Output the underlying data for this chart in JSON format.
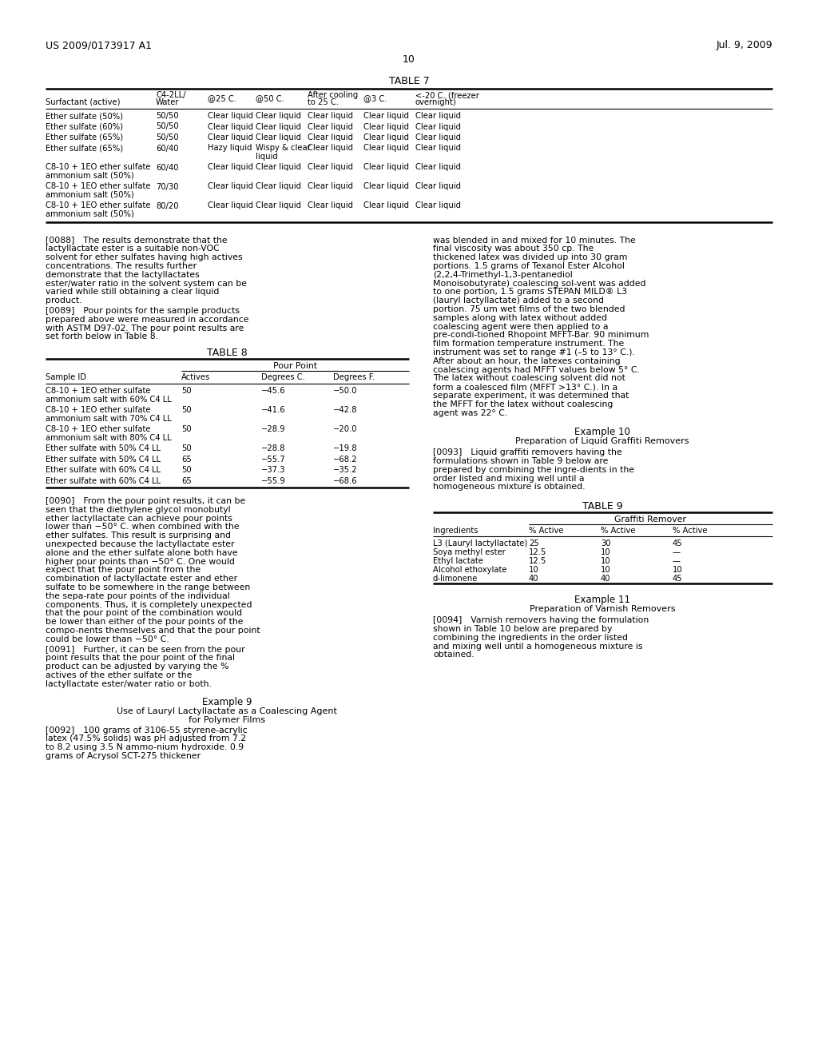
{
  "patent_number": "US 2009/0173917 A1",
  "date": "Jul. 9, 2009",
  "page_number": "10",
  "background_color": "#ffffff",
  "table7_title": "TABLE 7",
  "table7_rows": [
    [
      "Ether sulfate (50%)",
      "50/50",
      "Clear liquid",
      "Clear liquid",
      "Clear liquid",
      "Clear liquid",
      "Clear liquid"
    ],
    [
      "Ether sulfate (60%)",
      "50/50",
      "Clear liquid",
      "Clear liquid",
      "Clear liquid",
      "Clear liquid",
      "Clear liquid"
    ],
    [
      "Ether sulfate (65%)",
      "50/50",
      "Clear liquid",
      "Clear liquid",
      "Clear liquid",
      "Clear liquid",
      "Clear liquid"
    ],
    [
      "Ether sulfate (65%)",
      "60/40",
      "Hazy liquid",
      "Wispy & clear\nliquid",
      "Clear liquid",
      "Clear liquid",
      "Clear liquid"
    ],
    [
      "C8-10 + 1EO ether sulfate\nammonium salt (50%)",
      "60/40",
      "Clear liquid",
      "Clear liquid",
      "Clear liquid",
      "Clear liquid",
      "Clear liquid"
    ],
    [
      "C8-10 + 1EO ether sulfate\nammonium salt (50%)",
      "70/30",
      "Clear liquid",
      "Clear liquid",
      "Clear liquid",
      "Clear liquid",
      "Clear liquid"
    ],
    [
      "C8-10 + 1EO ether sulfate\nammonium salt (50%)",
      "80/20",
      "Clear liquid",
      "Clear liquid",
      "Clear liquid",
      "Clear liquid",
      "Clear liquid"
    ]
  ],
  "table8_title": "TABLE 8",
  "table8_subheader": "Pour Point",
  "table8_rows": [
    [
      "C8-10 + 1EO ether sulfate\nammonium salt with 60% C4 LL",
      "50",
      "−45.6",
      "−50.0"
    ],
    [
      "C8-10 + 1EO ether sulfate\nammonium salt with 70% C4 LL",
      "50",
      "−41.6",
      "−42.8"
    ],
    [
      "C8-10 + 1EO ether sulfate\nammonium salt with 80% C4 LL",
      "50",
      "−28.9",
      "−20.0"
    ],
    [
      "Ether sulfate with 50% C4 LL",
      "50",
      "−28.8",
      "−19.8"
    ],
    [
      "Ether sulfate with 50% C4 LL",
      "65",
      "−55.7",
      "−68.2"
    ],
    [
      "Ether sulfate with 60% C4 LL",
      "50",
      "−37.3",
      "−35.2"
    ],
    [
      "Ether sulfate with 60% C4 LL",
      "65",
      "−55.9",
      "−68.6"
    ]
  ],
  "table9_title": "TABLE 9",
  "table9_subheader": "Graffiti Remover",
  "table9_rows": [
    [
      "L3 (Lauryl lactyllactate)",
      "25",
      "30",
      "45"
    ],
    [
      "Soya methyl ester",
      "12.5",
      "10",
      "—"
    ],
    [
      "Ethyl lactate",
      "12.5",
      "10",
      "—"
    ],
    [
      "Alcohol ethoxylate",
      "10",
      "10",
      "10"
    ],
    [
      "d-limonene",
      "40",
      "40",
      "45"
    ]
  ],
  "para_0088": "[0088] The results demonstrate that the lactyllactate ester is a suitable non-VOC solvent for ether sulfates having high actives concentrations. The results further demonstrate that the lactyllactates ester/water ratio in the solvent system can be varied while still obtaining a clear liquid product.",
  "para_0089": "[0089] Pour points for the sample products prepared above were measured in accordance with ASTM D97-02. The pour point results are set forth below in Table 8.",
  "para_right_top": "was blended in and mixed for 10 minutes. The final viscosity was about 350 cp. The thickened latex was divided up into 30 gram portions. 1.5 grams of Texanol Ester Alcohol (2,2,4-Trimethyl-1,3-pentanediol Monoisobutyrate) coalescing sol-vent was added to one portion, 1.5 grams STEPAN MILD® L3 (lauryl lactyllactate) added to a second portion. 75 um wet films of the two blended samples along with latex without added coalescing agent were then applied to a pre-condi-tioned Rhopoint MFFT-Bar. 90 minimum film formation temperature instrument. The instrument was set to range #1 (–5 to 13° C.). After about an hour, the latexes containing coalescing agents had MFFT values below 5° C. The latex without coalescing solvent did not form a coalesced film (MFFT >13° C.). In a separate experiment, it was determined that the MFFT for the latex without coalescing agent was 22° C.",
  "example10_title": "Example 10",
  "example10_subtitle": "Preparation of Liquid Graffiti Removers",
  "para_0093": "[0093] Liquid graffiti removers having the formulations shown in Table 9 below are prepared by combining the ingre-dients in the order listed and mixing well until a homogeneous mixture is obtained.",
  "para_0090": "[0090] From the pour point results, it can be seen that the diethylene glycol monobutyl ether lactyllactate can achieve pour points lower than −50° C. when combined with the ether sulfates. This result is surprising and unexpected because the lactyllactate ester alone and the ether sulfate alone both have higher pour points than −50° C. One would expect that the pour point from the combination of lactyllactate ester and ether sulfate to be somewhere in the range between the sepa-rate pour points of the individual components. Thus, it is completely unexpected that the pour point of the combination would be lower than either of the pour points of the compo-nents themselves and that the pour point could be lower than −50° C.",
  "para_0091": "[0091] Further, it can be seen from the pour point results that the pour point of the final product can be adjusted by varying the % actives of the ether sulfate or the lactyllactate ester/water ratio or both.",
  "example9_title": "Example 9",
  "example9_subtitle1": "Use of Lauryl Lactyllactate as a Coalescing Agent",
  "example9_subtitle2": "for Polymer Films",
  "para_0092": "[0092] 100 grams of 3106-55 styrene-acrylic latex (47.5% solids) was pH adjusted from 7.2 to 8.2 using 3.5 N ammo-nium hydroxide. 0.9 grams of Acrysol SCT-275 thickener",
  "example11_title": "Example 11",
  "example11_subtitle": "Preparation of Varnish Removers",
  "para_0094": "[0094] Varnish removers having the formulation shown in Table 10 below are prepared by combining the ingredients in the order listed and mixing well until a homogeneous mixture is obtained."
}
